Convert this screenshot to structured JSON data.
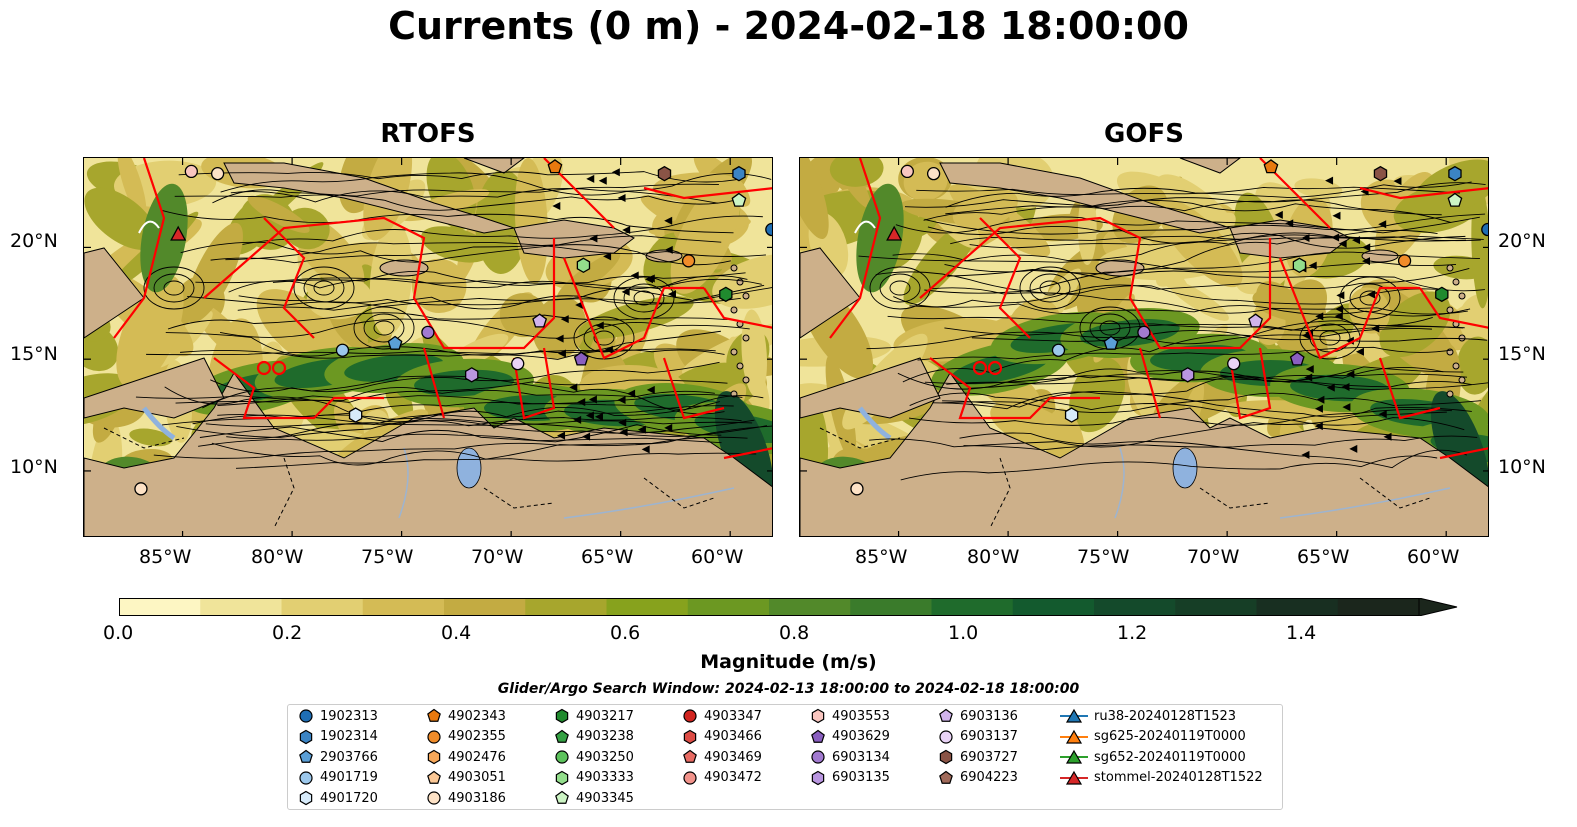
{
  "title": "Currents (0 m) - 2024-02-18 18:00:00",
  "panels": [
    {
      "title": "RTOFS"
    },
    {
      "title": "GOFS"
    }
  ],
  "lat_ticks": [
    "20°N",
    "15°N",
    "10°N"
  ],
  "lon_ticks": [
    "85°W",
    "80°W",
    "75°W",
    "70°W",
    "65°W",
    "60°W"
  ],
  "map_extent": {
    "lon": [
      -89.5,
      -58.0
    ],
    "lat": [
      7.0,
      24.0
    ]
  },
  "colorbar": {
    "label": "Magnitude (m/s)",
    "range": [
      0.0,
      1.55
    ],
    "ticks": [
      "0.0",
      "0.2",
      "0.4",
      "0.6",
      "0.8",
      "1.0",
      "1.2",
      "1.4"
    ],
    "extend": "max",
    "colors": [
      "#fdf6c3",
      "#f0e49a",
      "#e2cf72",
      "#d4bb55",
      "#c3ab42",
      "#a7a62d",
      "#87a21d",
      "#6c9822",
      "#52892a",
      "#3a7b2b",
      "#1f6b2c",
      "#135a2e",
      "#144a2b",
      "#163e26",
      "#182f21",
      "#1b261c"
    ]
  },
  "search_window": "Glider/Argo Search Window: 2024-02-13 18:00:00 to 2024-02-18 18:00:00",
  "legend": [
    {
      "label": "1902313",
      "marker": "circle",
      "color": "#1f6eb4"
    },
    {
      "label": "1902314",
      "marker": "hexagon",
      "color": "#3b84c4"
    },
    {
      "label": "2903766",
      "marker": "pentagon",
      "color": "#5b9fd6"
    },
    {
      "label": "4901719",
      "marker": "circle",
      "color": "#9cc8ec"
    },
    {
      "label": "4901720",
      "marker": "hexagon",
      "color": "#d7ebfa"
    },
    {
      "label": "4902343",
      "marker": "pentagon",
      "color": "#e8790e"
    },
    {
      "label": "4902355",
      "marker": "circle",
      "color": "#f08c2a"
    },
    {
      "label": "4902476",
      "marker": "hexagon",
      "color": "#f7a85a"
    },
    {
      "label": "4903051",
      "marker": "pentagon",
      "color": "#fbc896"
    },
    {
      "label": "4903186",
      "marker": "circle",
      "color": "#fde2c6"
    },
    {
      "label": "4903217",
      "marker": "hexagon",
      "color": "#208a2e"
    },
    {
      "label": "4903238",
      "marker": "pentagon",
      "color": "#34a043"
    },
    {
      "label": "4903250",
      "marker": "circle",
      "color": "#5cc25c"
    },
    {
      "label": "4903333",
      "marker": "hexagon",
      "color": "#93de8c"
    },
    {
      "label": "4903345",
      "marker": "pentagon",
      "color": "#ccf4c4"
    },
    {
      "label": "4903347",
      "marker": "circle",
      "color": "#d1241f"
    },
    {
      "label": "4903466",
      "marker": "hexagon",
      "color": "#dd4c45"
    },
    {
      "label": "4903469",
      "marker": "pentagon",
      "color": "#e86b63"
    },
    {
      "label": "4903472",
      "marker": "circle",
      "color": "#f2938b"
    },
    {
      "label": "4903553",
      "marker": "hexagon",
      "color": "#f9c6c0"
    },
    {
      "label": "4903629",
      "marker": "pentagon",
      "color": "#8a5fc0"
    },
    {
      "label": "6903134",
      "marker": "circle",
      "color": "#a27ad0"
    },
    {
      "label": "6903135",
      "marker": "hexagon",
      "color": "#b996e0"
    },
    {
      "label": "6903136",
      "marker": "pentagon",
      "color": "#d1b4ec"
    },
    {
      "label": "6903137",
      "marker": "circle",
      "color": "#e9d3f6"
    },
    {
      "label": "6903727",
      "marker": "hexagon",
      "color": "#8a5446"
    },
    {
      "label": "6904223",
      "marker": "pentagon",
      "color": "#a06a5a"
    },
    {
      "label": "ru38-20240128T1523",
      "marker": "triangle-line",
      "color": "#1f77b4"
    },
    {
      "label": "sg625-20240119T0000",
      "marker": "triangle-line",
      "color": "#ff7f0e"
    },
    {
      "label": "sg652-20240119T0000",
      "marker": "triangle-line",
      "color": "#2ca02c"
    },
    {
      "label": "stommel-20240128T1522",
      "marker": "triangle-line",
      "color": "#d62728"
    }
  ],
  "colors": {
    "land": "#cdb08a",
    "eez_lines": "#ff0000",
    "lakes": "#8fb2de",
    "rivers": "#9db4d0"
  }
}
